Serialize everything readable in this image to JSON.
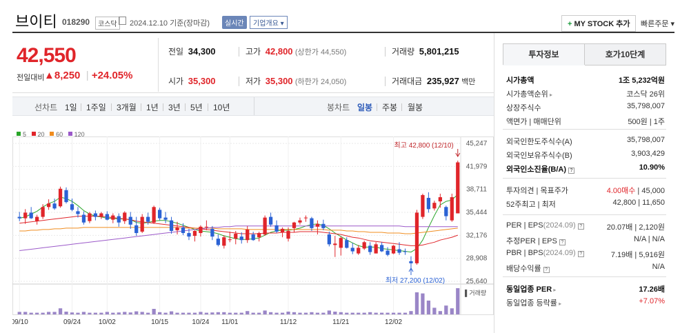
{
  "header": {
    "title": "브이티",
    "code": "018290",
    "market": "코스닥",
    "date": "2024.12.10 기준(장마감)",
    "realtime": "실시간",
    "overview": "기업개요",
    "mystock": "MY STOCK 추가",
    "quick_order": "빠른주문"
  },
  "summary": {
    "price": "42,550",
    "change_label": "전일대비",
    "change_amount": "8,250",
    "change_rate": "+24.05%",
    "prev_close_label": "전일",
    "prev_close": "34,300",
    "high_label": "고가",
    "high": "42,800",
    "upper_limit": "(상한가 44,550)",
    "volume_label": "거래량",
    "volume": "5,801,215",
    "open_label": "시가",
    "open": "35,300",
    "low_label": "저가",
    "low": "35,300",
    "lower_limit": "(하한가 24,050)",
    "amount_label": "거래대금",
    "amount": "235,927",
    "amount_unit": "백만"
  },
  "toolbar": {
    "line_chart": "선차트",
    "periods": [
      "1일",
      "1주일",
      "3개월",
      "1년",
      "3년",
      "5년",
      "10년"
    ],
    "candle_chart": "봉차트",
    "candle_periods": [
      "일봉",
      "주봉",
      "월봉"
    ]
  },
  "chart_data": {
    "type": "candlestick",
    "legend": [
      {
        "name": "5",
        "color": "#2aa52a"
      },
      {
        "name": "20",
        "color": "#e0252a"
      },
      {
        "name": "60",
        "color": "#f08c1e"
      },
      {
        "name": "120",
        "color": "#9b59c9"
      }
    ],
    "y_ticks": [
      "45,247",
      "41,979",
      "38,711",
      "35,444",
      "32,176",
      "28,908",
      "25,640"
    ],
    "ylim": [
      25640,
      45247
    ],
    "x_ticks": [
      "09/10",
      "09/24",
      "10/02",
      "10/15",
      "10/24",
      "11/01",
      "11/12",
      "11/21",
      "12/02"
    ],
    "max_label": "최고 42,800 (12/10)",
    "min_label": "최저 27,200 (12/02)",
    "volume_label": "거래량",
    "candles": [
      [
        34800,
        35500,
        34200,
        34600
      ],
      [
        34600,
        35900,
        33800,
        35400
      ],
      [
        35400,
        36200,
        34500,
        34600
      ],
      [
        34200,
        35100,
        33700,
        34800
      ],
      [
        34800,
        36600,
        34500,
        36200
      ],
      [
        36200,
        37300,
        35800,
        36700
      ],
      [
        36700,
        37400,
        35800,
        36000
      ],
      [
        36300,
        39100,
        36100,
        38800
      ],
      [
        38600,
        39000,
        36700,
        36900
      ],
      [
        36600,
        37400,
        35600,
        35800
      ],
      [
        35600,
        36200,
        34700,
        35200
      ],
      [
        35100,
        35600,
        33700,
        34000
      ],
      [
        34200,
        35500,
        33900,
        35300
      ],
      [
        35300,
        35700,
        34300,
        34800
      ],
      [
        34800,
        35500,
        34500,
        35300
      ],
      [
        35200,
        35600,
        34300,
        34400
      ],
      [
        34400,
        35300,
        33900,
        35000
      ],
      [
        34900,
        35300,
        33400,
        34000
      ],
      [
        34200,
        35600,
        33800,
        35400
      ],
      [
        34800,
        35500,
        33100,
        33700
      ],
      [
        33600,
        34800,
        32100,
        32500
      ],
      [
        32700,
        35200,
        32500,
        34800
      ],
      [
        34800,
        35400,
        33700,
        34100
      ],
      [
        34000,
        36400,
        33800,
        36200
      ],
      [
        35800,
        36100,
        34300,
        34600
      ],
      [
        34700,
        35500,
        33900,
        34400
      ],
      [
        34300,
        34800,
        32400,
        32800
      ],
      [
        32900,
        34100,
        32300,
        33300
      ],
      [
        33300,
        33900,
        32200,
        32500
      ],
      [
        32500,
        33100,
        31500,
        32000
      ],
      [
        32100,
        32900,
        31300,
        32800
      ],
      [
        32500,
        33600,
        32000,
        33400
      ],
      [
        33300,
        34300,
        32900,
        33400
      ],
      [
        33100,
        33500,
        31500,
        32000
      ],
      [
        31700,
        32300,
        30600,
        30800
      ],
      [
        30700,
        32200,
        30300,
        31900
      ],
      [
        31600,
        32700,
        31200,
        31600
      ],
      [
        31700,
        32800,
        30900,
        32400
      ],
      [
        32000,
        32600,
        31000,
        31500
      ],
      [
        31500,
        33500,
        31100,
        33000
      ],
      [
        32300,
        32700,
        31400,
        31500
      ],
      [
        31900,
        32700,
        31300,
        32500
      ],
      [
        32300,
        35000,
        32100,
        34700
      ],
      [
        34800,
        35400,
        33400,
        33700
      ],
      [
        33600,
        34300,
        32500,
        32700
      ],
      [
        32600,
        33300,
        31900,
        33100
      ],
      [
        31700,
        33300,
        31300,
        32800
      ],
      [
        33200,
        34100,
        32600,
        34000
      ],
      [
        34000,
        34700,
        33700,
        34300
      ],
      [
        34600,
        35000,
        34100,
        34700
      ],
      [
        34600,
        34800,
        32800,
        33200
      ],
      [
        33400,
        34300,
        32300,
        33800
      ],
      [
        33800,
        34400,
        32900,
        33200
      ],
      [
        32300,
        32700,
        30600,
        30900
      ],
      [
        30800,
        32100,
        29100,
        31000
      ],
      [
        30400,
        32000,
        29300,
        31800
      ],
      [
        31500,
        31900,
        30300,
        30400
      ],
      [
        30400,
        31100,
        29500,
        29900
      ],
      [
        29600,
        30800,
        29400,
        30400
      ],
      [
        30300,
        31400,
        30100,
        31200
      ],
      [
        30700,
        31200,
        29400,
        29800
      ],
      [
        29600,
        31200,
        29600,
        30900
      ],
      [
        30800,
        31200,
        29800,
        29900
      ],
      [
        30000,
        30500,
        29200,
        29400
      ],
      [
        29600,
        30800,
        29500,
        30700
      ],
      [
        30200,
        31200,
        29400,
        29700
      ],
      [
        29900,
        30300,
        29400,
        29800
      ],
      [
        28500,
        29200,
        27200,
        28200
      ],
      [
        28200,
        35800,
        28000,
        35400
      ],
      [
        34800,
        38100,
        34500,
        37900
      ],
      [
        37500,
        38300,
        35400,
        35900
      ],
      [
        36000,
        37100,
        35700,
        36800
      ],
      [
        37000,
        38100,
        36100,
        37600
      ],
      [
        36200,
        36400,
        34300,
        34900
      ],
      [
        34300,
        38100,
        34100,
        37600
      ],
      [
        35300,
        42800,
        35300,
        42550
      ]
    ],
    "volumes": [
      0.09,
      0.09,
      0.06,
      0.06,
      0.06,
      0.09,
      0.09,
      0.22,
      0.1,
      0.07,
      0.06,
      0.09,
      0.06,
      0.06,
      0.06,
      0.09,
      0.06,
      0.07,
      0.09,
      0.07,
      0.11,
      0.09,
      0.06,
      0.2,
      0.08,
      0.06,
      0.11,
      0.06,
      0.06,
      0.06,
      0.06,
      0.09,
      0.06,
      0.07,
      0.08,
      0.08,
      0.06,
      0.06,
      0.06,
      0.12,
      0.06,
      0.06,
      0.14,
      0.08,
      0.06,
      0.06,
      0.1,
      0.08,
      0.06,
      0.06,
      0.08,
      0.06,
      0.06,
      0.14,
      0.1,
      0.08,
      0.06,
      0.06,
      0.06,
      0.06,
      0.08,
      0.06,
      0.06,
      0.06,
      0.06,
      0.06,
      0.06,
      0.12,
      0.8,
      0.76,
      0.5,
      0.24,
      0.12,
      0.32,
      0.22,
      0.95
    ],
    "ma": {
      "5": [
        34600,
        34800,
        35200,
        35600,
        36200,
        36700,
        37000,
        37600,
        37400,
        37000,
        36400,
        35700,
        35200,
        34900,
        34800,
        34600,
        34600,
        34500,
        34500,
        34400,
        34000,
        33900,
        34000,
        34200,
        34300,
        34300,
        34100,
        33900,
        33600,
        33300,
        33000,
        32800,
        32700,
        32600,
        32400,
        32100,
        31900,
        31700,
        31600,
        31600,
        31700,
        31800,
        32200,
        32600,
        32800,
        32900,
        32900,
        33000,
        33200,
        33500,
        33700,
        33800,
        33600,
        33100,
        32500,
        32000,
        31500,
        31100,
        30700,
        30500,
        30500,
        30500,
        30300,
        30200,
        30100,
        30000,
        29900,
        29800,
        30300,
        31500,
        33300,
        35000,
        36500,
        37000,
        37200,
        38000
      ],
      "20": [
        33900,
        34000,
        34100,
        34200,
        34300,
        34400,
        34500,
        34600,
        34700,
        34800,
        34900,
        34900,
        34900,
        34900,
        34900,
        34800,
        34700,
        34600,
        34500,
        34400,
        34200,
        34100,
        34000,
        33900,
        33800,
        33700,
        33600,
        33500,
        33400,
        33300,
        33200,
        33100,
        33000,
        32900,
        32800,
        32700,
        32600,
        32500,
        32400,
        32400,
        32400,
        32400,
        32500,
        32500,
        32500,
        32600,
        32600,
        32600,
        32700,
        32700,
        32700,
        32700,
        32600,
        32500,
        32400,
        32300,
        32100,
        31900,
        31800,
        31600,
        31400,
        31300,
        31200,
        31100,
        31000,
        30900,
        30800,
        30700,
        30700,
        30800,
        31000,
        31200,
        31500,
        31700,
        31900,
        32200
      ],
      "60": [
        32800,
        32800,
        32900,
        32900,
        33000,
        33000,
        33100,
        33100,
        33200,
        33200,
        33200,
        33300,
        33300,
        33300,
        33300,
        33300,
        33300,
        33300,
        33300,
        33300,
        33300,
        33300,
        33300,
        33300,
        33300,
        33300,
        33300,
        33300,
        33200,
        33200,
        33200,
        33200,
        33200,
        33200,
        33100,
        33100,
        33100,
        33100,
        33100,
        33000,
        33000,
        33000,
        33000,
        33000,
        33000,
        33000,
        33000,
        33000,
        33000,
        33000,
        33000,
        33000,
        33000,
        32900,
        32900,
        32900,
        32800,
        32800,
        32700,
        32700,
        32600,
        32600,
        32600,
        32500,
        32500,
        32500,
        32400,
        32400,
        32500,
        32600,
        32700,
        32800,
        32900,
        33000,
        33100,
        33200
      ],
      "120": [
        30000,
        30100,
        30200,
        30300,
        30400,
        30500,
        30600,
        30700,
        30800,
        30900,
        31000,
        31100,
        31200,
        31300,
        31400,
        31500,
        31600,
        31700,
        31800,
        31900,
        32000,
        32100,
        32200,
        32300,
        32400,
        32500,
        32600,
        32700,
        32800,
        32900,
        33000,
        33100,
        33200,
        33300,
        33300,
        33400,
        33400,
        33500,
        33500,
        33500,
        33500,
        33500,
        33500,
        33500,
        33500,
        33500,
        33500,
        33500,
        33500,
        33500,
        33500,
        33500,
        33500,
        33500,
        33500,
        33500,
        33500,
        33500,
        33500,
        33500,
        33500,
        33500,
        33500,
        33500,
        33500,
        33500,
        33400,
        33400,
        33400,
        33400,
        33400,
        33400,
        33400,
        33400,
        33400,
        33400
      ]
    }
  },
  "right": {
    "tab_invest": "투자정보",
    "tab_quote": "호가10단계",
    "rows": [
      {
        "k": "시가총액",
        "v": "1조 5,232억원",
        "bold": true
      },
      {
        "k": "시가총액순위",
        "v": "코스닥 26위",
        "arrow": true
      },
      {
        "k": "상장주식수",
        "v": "35,798,007"
      },
      {
        "k": "액면가 | 매매단위",
        "v": "500원 | 1주"
      }
    ],
    "rows2": [
      {
        "k": "외국인한도주식수(A)",
        "v": "35,798,007"
      },
      {
        "k": "외국인보유주식수(B)",
        "v": "3,903,429"
      },
      {
        "k": "외국인소진율(B/A)",
        "v": "10.90%",
        "bold": true,
        "q": true
      }
    ],
    "rows3": [
      {
        "k": "투자의견 | 목표주가",
        "v_red": "4.00매수",
        "v": " | 45,000"
      },
      {
        "k": "52주최고 | 최저",
        "v": "42,800 | 11,650"
      }
    ],
    "rows4": [
      {
        "k": "PER | EPS",
        "k_gray": "(2024.09)",
        "v": "20.07배 | 2,120원",
        "q": true
      },
      {
        "k": "추정PER | EPS",
        "v": "N/A | N/A",
        "q": true
      },
      {
        "k": "PBR | BPS",
        "k_gray": "(2024.09)",
        "v": "7.19배 | 5,916원",
        "q": true
      },
      {
        "k": "배당수익률",
        "v": "N/A",
        "q": true
      }
    ],
    "rows5": [
      {
        "k": "동일업종 PER",
        "v": "17.26배",
        "bold": true,
        "arrow": true
      },
      {
        "k": "동일업종 등락률",
        "v_red": "+7.07%",
        "arrow": true
      }
    ]
  }
}
